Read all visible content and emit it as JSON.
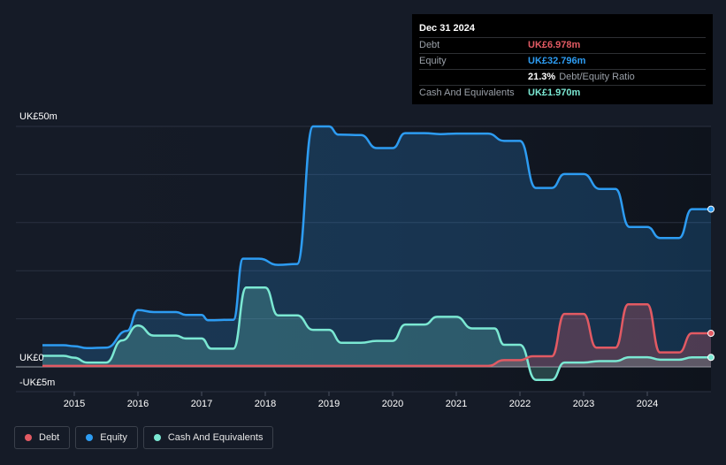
{
  "tooltip": {
    "date": "Dec 31 2024",
    "rows": [
      {
        "label": "Debt",
        "value": "UK£6.978m",
        "color": "#e25a63"
      },
      {
        "label": "Equity",
        "value": "UK£32.796m",
        "color": "#2d9cf2"
      },
      {
        "label": "",
        "value": "21.3%",
        "extra": "Debt/Equity Ratio",
        "color": "#ffffff"
      },
      {
        "label": "Cash And Equivalents",
        "value": "UK£1.970m",
        "color": "#7be8d3"
      }
    ]
  },
  "legend": [
    {
      "label": "Debt",
      "color": "#e25a63"
    },
    {
      "label": "Equity",
      "color": "#2d9cf2"
    },
    {
      "label": "Cash And Equivalents",
      "color": "#7be8d3"
    }
  ],
  "chart_data": {
    "type": "area",
    "y_tick_labels": {
      "top": "UK£50m",
      "zero": "UK£0",
      "bottom": "-UK£5m"
    },
    "ylim": [
      -5,
      50
    ],
    "xlim": [
      2014.5,
      2025.0
    ],
    "x_ticks": [
      "2015",
      "2016",
      "2017",
      "2018",
      "2019",
      "2020",
      "2021",
      "2022",
      "2023",
      "2024"
    ],
    "grid": true,
    "series": [
      {
        "name": "Equity",
        "color": "#2d9cf2",
        "points": [
          [
            2014.5,
            4.5
          ],
          [
            2014.83,
            4.5
          ],
          [
            2015.0,
            4.3
          ],
          [
            2015.2,
            3.9
          ],
          [
            2015.5,
            4.0
          ],
          [
            2015.83,
            7.5
          ],
          [
            2016.0,
            11.8
          ],
          [
            2016.25,
            11.4
          ],
          [
            2016.6,
            11.4
          ],
          [
            2016.75,
            10.8
          ],
          [
            2017.0,
            10.8
          ],
          [
            2017.1,
            9.7
          ],
          [
            2017.5,
            9.8
          ],
          [
            2017.65,
            22.5
          ],
          [
            2017.9,
            22.5
          ],
          [
            2018.2,
            21.2
          ],
          [
            2018.5,
            21.4
          ],
          [
            2018.75,
            50.0
          ],
          [
            2019.0,
            50.0
          ],
          [
            2019.15,
            48.3
          ],
          [
            2019.5,
            48.2
          ],
          [
            2019.75,
            45.5
          ],
          [
            2020.0,
            45.5
          ],
          [
            2020.2,
            48.6
          ],
          [
            2020.5,
            48.6
          ],
          [
            2020.75,
            48.4
          ],
          [
            2021.0,
            48.5
          ],
          [
            2021.5,
            48.5
          ],
          [
            2021.75,
            47.0
          ],
          [
            2022.0,
            47.0
          ],
          [
            2022.25,
            37.2
          ],
          [
            2022.5,
            37.2
          ],
          [
            2022.7,
            40.1
          ],
          [
            2023.0,
            40.1
          ],
          [
            2023.25,
            37.0
          ],
          [
            2023.5,
            37.0
          ],
          [
            2023.72,
            29.1
          ],
          [
            2024.0,
            29.1
          ],
          [
            2024.2,
            26.8
          ],
          [
            2024.5,
            26.8
          ],
          [
            2024.7,
            32.8
          ],
          [
            2025.0,
            32.8
          ]
        ]
      },
      {
        "name": "Cash And Equivalents",
        "color": "#7be8d3",
        "points": [
          [
            2014.5,
            2.3
          ],
          [
            2014.83,
            2.3
          ],
          [
            2015.0,
            1.9
          ],
          [
            2015.2,
            0.9
          ],
          [
            2015.5,
            0.9
          ],
          [
            2015.75,
            5.5
          ],
          [
            2016.0,
            8.6
          ],
          [
            2016.25,
            6.5
          ],
          [
            2016.6,
            6.5
          ],
          [
            2016.75,
            5.9
          ],
          [
            2017.0,
            5.9
          ],
          [
            2017.15,
            3.8
          ],
          [
            2017.5,
            3.8
          ],
          [
            2017.7,
            16.5
          ],
          [
            2018.0,
            16.5
          ],
          [
            2018.2,
            10.7
          ],
          [
            2018.5,
            10.7
          ],
          [
            2018.75,
            7.7
          ],
          [
            2019.0,
            7.7
          ],
          [
            2019.2,
            5.0
          ],
          [
            2019.5,
            5.0
          ],
          [
            2019.75,
            5.4
          ],
          [
            2020.0,
            5.4
          ],
          [
            2020.2,
            8.8
          ],
          [
            2020.5,
            8.8
          ],
          [
            2020.7,
            10.4
          ],
          [
            2021.0,
            10.4
          ],
          [
            2021.25,
            8.0
          ],
          [
            2021.6,
            8.0
          ],
          [
            2021.75,
            4.6
          ],
          [
            2022.0,
            4.6
          ],
          [
            2022.25,
            -2.7
          ],
          [
            2022.5,
            -2.7
          ],
          [
            2022.7,
            0.9
          ],
          [
            2023.0,
            0.9
          ],
          [
            2023.25,
            1.2
          ],
          [
            2023.5,
            1.2
          ],
          [
            2023.72,
            2.0
          ],
          [
            2024.0,
            2.0
          ],
          [
            2024.2,
            1.5
          ],
          [
            2024.5,
            1.5
          ],
          [
            2024.7,
            1.97
          ],
          [
            2025.0,
            1.97
          ]
        ]
      },
      {
        "name": "Debt",
        "color": "#e25a63",
        "points": [
          [
            2014.5,
            0.2
          ],
          [
            2021.5,
            0.2
          ],
          [
            2021.75,
            1.4
          ],
          [
            2022.0,
            1.4
          ],
          [
            2022.2,
            2.2
          ],
          [
            2022.5,
            2.2
          ],
          [
            2022.7,
            11.0
          ],
          [
            2023.0,
            11.0
          ],
          [
            2023.2,
            4.0
          ],
          [
            2023.5,
            4.0
          ],
          [
            2023.7,
            13.0
          ],
          [
            2024.0,
            13.0
          ],
          [
            2024.2,
            3.0
          ],
          [
            2024.5,
            3.0
          ],
          [
            2024.7,
            6.978
          ],
          [
            2025.0,
            6.978
          ]
        ]
      }
    ]
  }
}
